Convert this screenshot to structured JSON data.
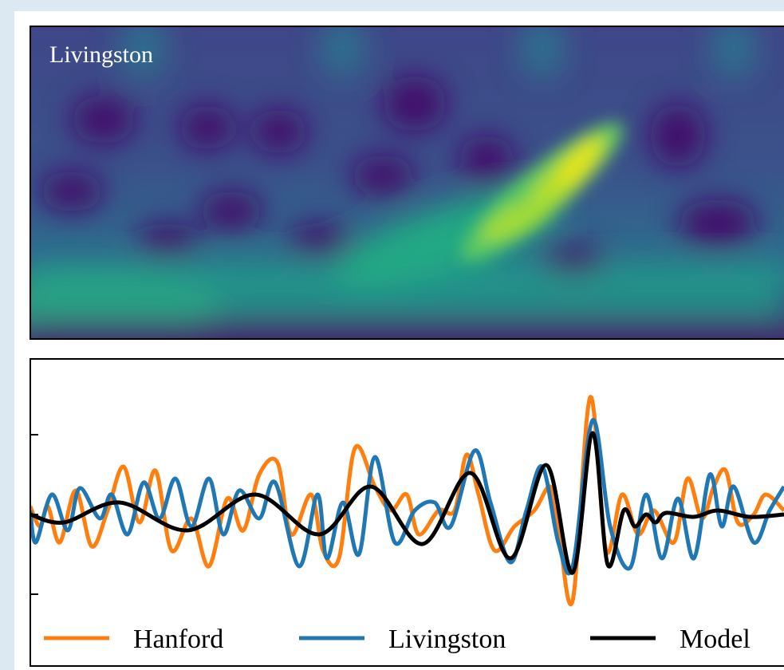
{
  "chart_data": [
    {
      "type": "heatmap",
      "annotation": "Livingston"
    },
    {
      "type": "line",
      "xlim": [
        0,
        945
      ],
      "ylim": [
        -190,
        195
      ],
      "yticks": [
        -100,
        0,
        100
      ],
      "legend": "lower center",
      "series": [
        {
          "name": "Hanford",
          "color": "#ff7f0e",
          "x": [
            0,
            12,
            22,
            37,
            57,
            77,
            97,
            117,
            137,
            157,
            177,
            202,
            224,
            247,
            267,
            287,
            310,
            327,
            352,
            367,
            387,
            407,
            432,
            452,
            472,
            487,
            512,
            532,
            547,
            562,
            582,
            607,
            632,
            652,
            662,
            680,
            702,
            722,
            742,
            762,
            782,
            807,
            824,
            842,
            857,
            872,
            887,
            907,
            922,
            945
          ],
          "values": [
            10,
            -15,
            10,
            -35,
            30,
            -40,
            5,
            60,
            -10,
            55,
            -45,
            -5,
            -65,
            20,
            -20,
            50,
            65,
            -25,
            25,
            -45,
            -55,
            83,
            35,
            5,
            25,
            -25,
            5,
            5,
            75,
            25,
            -45,
            -15,
            5,
            35,
            -15,
            -108,
            147,
            -45,
            25,
            -25,
            5,
            -35,
            45,
            -5,
            35,
            55,
            -10,
            0,
            25,
            5
          ]
        },
        {
          "name": "Livingston",
          "color": "#1f77b4",
          "x": [
            0,
            7,
            27,
            47,
            62,
            87,
            102,
            122,
            142,
            162,
            182,
            202,
            224,
            242,
            262,
            287,
            307,
            337,
            360,
            372,
            392,
            412,
            432,
            457,
            482,
            507,
            527,
            557,
            577,
            602,
            622,
            642,
            662,
            680,
            705,
            727,
            752,
            772,
            792,
            812,
            832,
            852,
            867,
            882,
            907,
            927,
            945
          ],
          "values": [
            5,
            -35,
            25,
            -20,
            33,
            -5,
            25,
            -25,
            40,
            -5,
            45,
            -15,
            45,
            -25,
            30,
            -5,
            40,
            -65,
            25,
            -55,
            15,
            -50,
            72,
            -35,
            5,
            15,
            -15,
            80,
            15,
            -60,
            5,
            60,
            -35,
            -65,
            118,
            -15,
            -67,
            25,
            -55,
            20,
            -55,
            50,
            -15,
            35,
            -35,
            5,
            35
          ]
        },
        {
          "name": "Model",
          "color": "#000000",
          "x": [
            0,
            42,
            112,
            197,
            282,
            362,
            427,
            492,
            552,
            602,
            647,
            680,
            705,
            724,
            744,
            758,
            772,
            784,
            797,
            832,
            862,
            902,
            945
          ],
          "values": [
            0,
            -10,
            15,
            -20,
            25,
            -25,
            35,
            -37,
            52,
            -55,
            62,
            -73,
            102,
            -63,
            5,
            -15,
            0,
            -10,
            2,
            -3,
            5,
            -3,
            0
          ]
        }
      ]
    }
  ]
}
